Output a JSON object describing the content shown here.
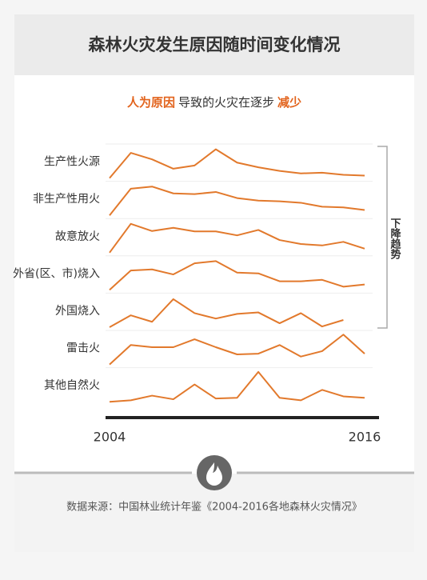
{
  "chart_data": {
    "type": "line",
    "title": "森林火灾发生原因随时间变化情况",
    "subtitle": [
      {
        "text": "人为原因",
        "highlight": true
      },
      {
        "text": "导致的火灾在逐步",
        "highlight": false
      },
      {
        "text": "减少",
        "highlight": true
      }
    ],
    "x": [
      2004,
      2005,
      2006,
      2007,
      2008,
      2009,
      2010,
      2011,
      2012,
      2013,
      2014,
      2015,
      2016
    ],
    "xlim": [
      2004,
      2016
    ],
    "xticks": [
      2004,
      2016
    ],
    "ylim": [
      0,
      10
    ],
    "color": "#e2792c",
    "highlight_color": "#e2631c",
    "series": [
      {
        "name": "生产性火源",
        "values": [
          0,
          7,
          5.2,
          2.6,
          3.5,
          8,
          4.3,
          3,
          2,
          1.3,
          1.5,
          0.9,
          0.7
        ]
      },
      {
        "name": "非生产性用火",
        "values": [
          0,
          7.4,
          8,
          6.1,
          5.9,
          6.5,
          4.8,
          4.1,
          3.9,
          3.5,
          2.4,
          2.2,
          1.5
        ]
      },
      {
        "name": "故意放火",
        "values": [
          0,
          8,
          6,
          6.9,
          5.9,
          5.9,
          4.8,
          6.3,
          3.5,
          2.4,
          2,
          3,
          1.1
        ]
      },
      {
        "name": "外省(区、市)烧入",
        "values": [
          0,
          5.4,
          5.7,
          4.3,
          7.4,
          8,
          4.8,
          4.6,
          2.4,
          2.4,
          2.8,
          0.9,
          1.5
        ]
      },
      {
        "name": "外国烧入",
        "values": [
          0,
          3.3,
          1.5,
          7.8,
          3.9,
          2.4,
          3.7,
          4.1,
          1.1,
          3.9,
          0.2,
          2.0,
          null
        ]
      },
      {
        "name": "雷击火",
        "values": [
          0,
          5.4,
          4.8,
          4.8,
          7,
          4.8,
          2.8,
          3,
          5.4,
          2.2,
          3.7,
          8.3,
          3
        ]
      },
      {
        "name": "其他自然火",
        "values": [
          0,
          0.4,
          1.7,
          0.7,
          4.8,
          0.9,
          1.1,
          8.3,
          1.1,
          0.4,
          3.3,
          1.5,
          1.1
        ]
      }
    ],
    "trend_label": "下降趋势",
    "source": "数据来源：中国林业统计年鉴《2004-2016各地森林火灾情况》"
  }
}
